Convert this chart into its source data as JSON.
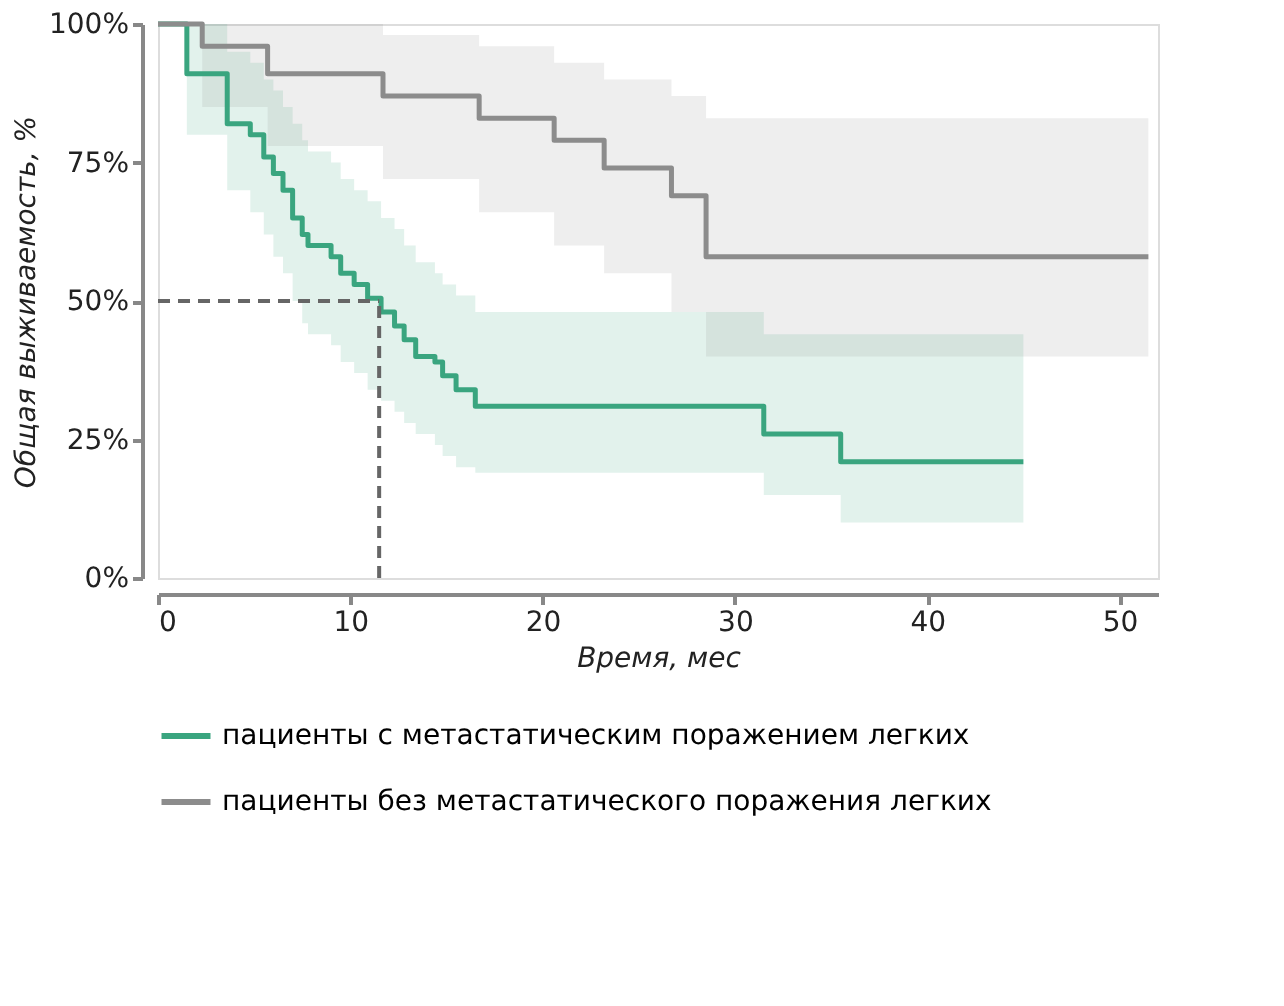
{
  "chart_data": {
    "type": "step",
    "xlabel": "Время, мес",
    "ylabel": "Общая выживаемость, %",
    "xlim": [
      0,
      52
    ],
    "xticks": [
      0,
      10,
      20,
      30,
      40,
      50
    ],
    "ylim": [
      0,
      100
    ],
    "yticks": [
      {
        "value": 0,
        "label": "0%"
      },
      {
        "value": 25,
        "label": "25%"
      },
      {
        "value": 50,
        "label": "50%"
      },
      {
        "value": 75,
        "label": "75%"
      },
      {
        "value": 100,
        "label": "100%"
      }
    ],
    "series": [
      {
        "name": "пациенты с метастатическим поражением легких",
        "color": "#3aa57f",
        "x": [
          0,
          1.5,
          3.6,
          4.8,
          5.5,
          6,
          6.5,
          7,
          7.5,
          7.8,
          9,
          9.5,
          10.2,
          10.9,
          11.6,
          12.3,
          12.8,
          13.4,
          14.4,
          14.8,
          15.5,
          16.5,
          31.5,
          35.5,
          45
        ],
        "values": [
          100,
          91,
          82,
          80,
          76,
          73,
          70,
          65,
          62,
          60,
          58,
          55,
          53,
          50.5,
          48,
          45.5,
          43,
          40,
          39,
          36.5,
          34,
          31,
          26,
          21,
          21
        ],
        "lower": [
          100,
          80,
          70,
          66,
          62,
          58,
          55,
          50,
          46,
          44,
          42,
          39,
          37,
          34,
          32,
          30,
          28,
          26,
          24,
          22,
          20,
          19,
          15,
          10,
          10
        ],
        "upper": [
          100,
          100,
          95,
          93,
          90,
          88,
          85,
          82,
          79,
          77,
          75,
          72,
          70,
          68,
          65,
          63,
          60,
          57,
          55,
          53,
          51,
          48,
          44,
          44,
          44
        ]
      },
      {
        "name": "пациенты без метастатического поражения легких",
        "color": "#8c8c8c",
        "x": [
          0,
          2.3,
          5.7,
          11.7,
          16.7,
          20.6,
          23.2,
          26.7,
          28.5,
          51.5
        ],
        "values": [
          100,
          96,
          91,
          87,
          83,
          79,
          74,
          69,
          58,
          58
        ],
        "lower": [
          100,
          85,
          78,
          72,
          66,
          60,
          55,
          48,
          40,
          40
        ],
        "upper": [
          100,
          100,
          100,
          98,
          96,
          93,
          90,
          87,
          83,
          83
        ]
      }
    ],
    "ref_lines": [
      {
        "axis": "y",
        "value": 50,
        "color": "#666666",
        "line_style": "dashed"
      },
      {
        "axis": "x",
        "value": 11.5,
        "color": "#666666",
        "line_style": "dashed"
      }
    ],
    "grid": false,
    "legend": "bottom",
    "marker": "none",
    "line_style": "solid"
  }
}
